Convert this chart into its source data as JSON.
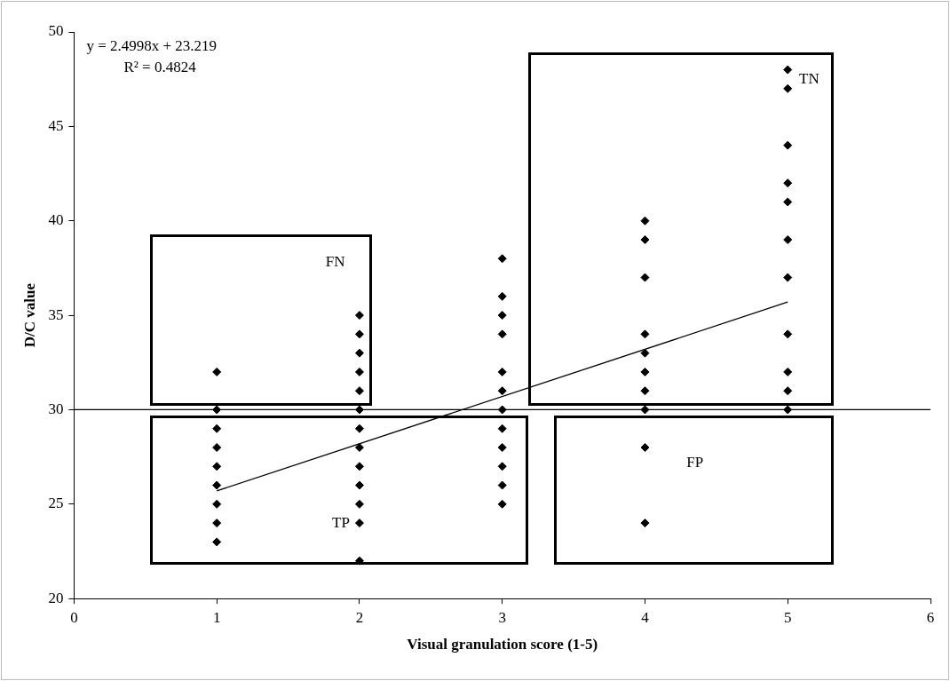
{
  "chart_data": {
    "type": "scatter",
    "xlabel": "Visual granulation score (1-5)",
    "ylabel": "D/C value",
    "series": [
      {
        "color": "#000000",
        "x": [
          1,
          1,
          1,
          1,
          1,
          1,
          1,
          1,
          1,
          2,
          2,
          2,
          2,
          2,
          2,
          2,
          2,
          2,
          2,
          2,
          2,
          2,
          3,
          3,
          3,
          3,
          3,
          3,
          3,
          3,
          3,
          3,
          3,
          3,
          4,
          4,
          4,
          4,
          4,
          4,
          4,
          4,
          4,
          4,
          5,
          5,
          5,
          5,
          5,
          5,
          5,
          5,
          5,
          5,
          5
        ],
        "values": [
          32,
          30,
          29,
          28,
          27,
          26,
          25,
          24,
          23,
          35,
          34,
          33,
          32,
          31,
          30,
          29,
          28,
          27,
          26,
          25,
          24,
          22,
          38,
          36,
          35,
          34,
          32,
          31,
          30,
          29,
          28,
          27,
          26,
          25,
          40,
          39,
          37,
          34,
          33,
          32,
          31,
          30,
          28,
          24,
          48,
          47,
          44,
          42,
          41,
          39,
          37,
          34,
          32,
          31,
          30
        ]
      },
      {
        "type": "line",
        "color": "#000000",
        "x": [
          1,
          5
        ],
        "values": [
          25.7,
          35.7
        ],
        "marker": "none"
      }
    ],
    "xlim": [
      0,
      6
    ],
    "xticks": [
      0,
      1,
      2,
      3,
      4,
      5,
      6
    ],
    "ylim": [
      20,
      50
    ],
    "yticks": [
      20,
      25,
      30,
      35,
      40,
      45,
      50
    ],
    "grid": false,
    "legend": false,
    "marker": "diamond",
    "ref_lines": [
      {
        "axis": "y",
        "value": 30,
        "color": "#000000"
      }
    ],
    "annotations": [
      "y = 2.4998x + 23.219",
      "R² = 0.4824",
      "FN",
      "TP",
      "TN",
      "FP"
    ]
  }
}
